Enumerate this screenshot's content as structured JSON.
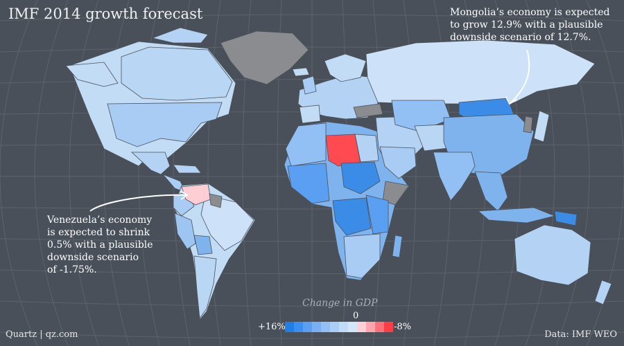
{
  "title": "IMF 2014 growth forecast",
  "annotations": {
    "mongolia": [
      "Mongolia’s economy is expected",
      "to grow 12.9% with a plausible",
      "downside scenario of 12.7%."
    ],
    "venezuela": [
      "Venezuela’s economy",
      "is expected to shrink",
      "0.5% with a plausible",
      "downside scenario",
      "of -1.75%."
    ]
  },
  "legend": {
    "title": "Change in GDP",
    "zero_label": "0",
    "left_label": "+16%",
    "right_label": "-8%",
    "swatches": [
      "#1e7fe6",
      "#3a8ff0",
      "#5a9ff2",
      "#78b0f3",
      "#92c0f4",
      "#aacff6",
      "#c0dcf7",
      "#d4e7f9",
      "#ffd0d6",
      "#ffa5ae",
      "#ff7079",
      "#ff3d47"
    ]
  },
  "footer": {
    "credit": "Quartz | qz.com",
    "source": "Data: IMF WEO"
  },
  "colors": {
    "background": "#4a5059",
    "no_data": "#8a8c8f",
    "growth_strong": "#3b8ce6",
    "growth_mid": "#7fb3ee",
    "growth_light": "#c2dcf6",
    "contraction_light": "#ffcdd4",
    "contraction_strong": "#ff4a52"
  },
  "highlighted_countries": [
    {
      "name": "Mongolia",
      "growth_2014_pct": 12.9,
      "downside_pct": 12.7
    },
    {
      "name": "Venezuela",
      "growth_2014_pct": -0.5,
      "downside_pct": -1.75
    },
    {
      "name": "Libya",
      "growth_2014_pct": -8
    }
  ]
}
